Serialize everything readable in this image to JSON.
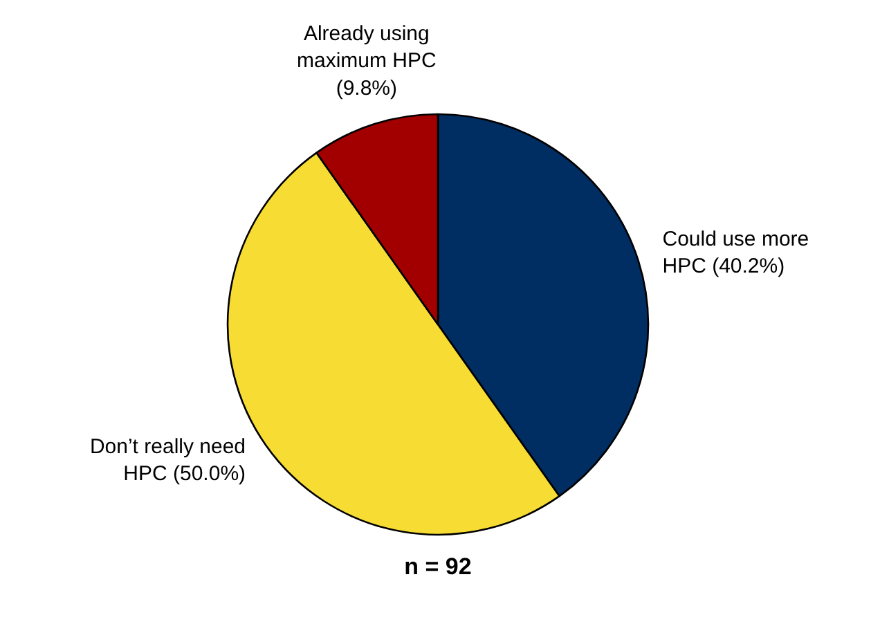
{
  "chart_data": {
    "type": "pie",
    "categories": [
      "Could use more HPC",
      "Don’t really need HPC",
      "Already using maximum HPC"
    ],
    "values": [
      40.2,
      50.0,
      9.8
    ],
    "colors": [
      "#002d62",
      "#f7dc34",
      "#a20000"
    ],
    "value_labels": [
      "(40.2%)",
      "(50.0%)",
      "(9.8%)"
    ],
    "annotations": [
      "n = 92"
    ]
  }
}
